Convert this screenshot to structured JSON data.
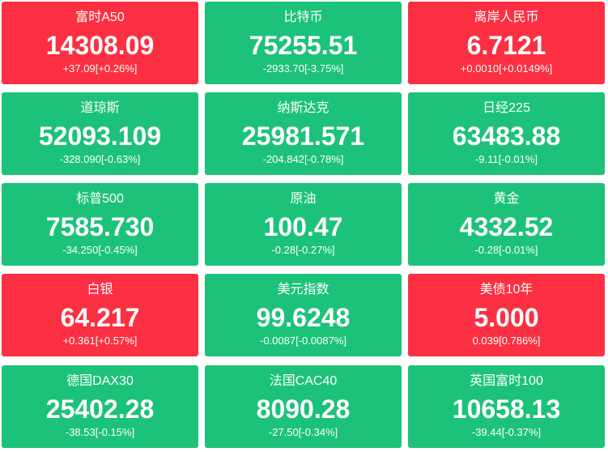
{
  "tiles": [
    {
      "name": "富时A50",
      "price": "14308.09",
      "change": "+37.09[+0.26%]",
      "color": "#fd2f42"
    },
    {
      "name": "比特币",
      "price": "75255.51",
      "change": "-2933.70[-3.75%]",
      "color": "#1cc27a"
    },
    {
      "name": "离岸人民币",
      "price": "6.7121",
      "change": "+0.0010[+0.0149%]",
      "color": "#fd2f42"
    },
    {
      "name": "道琼斯",
      "price": "52093.109",
      "change": "-328.090[-0.63%]",
      "color": "#1cc27a"
    },
    {
      "name": "纳斯达克",
      "price": "25981.571",
      "change": "-204.842[-0.78%]",
      "color": "#1cc27a"
    },
    {
      "name": "日经225",
      "price": "63483.88",
      "change": "-9.11[-0.01%]",
      "color": "#1cc27a"
    },
    {
      "name": "标普500",
      "price": "7585.730",
      "change": "-34.250[-0.45%]",
      "color": "#1cc27a"
    },
    {
      "name": "原油",
      "price": "100.47",
      "change": "-0.28[-0.27%]",
      "color": "#1cc27a"
    },
    {
      "name": "黄金",
      "price": "4332.52",
      "change": "-0.28[-0.01%]",
      "color": "#1cc27a"
    },
    {
      "name": "白银",
      "price": "64.217",
      "change": "+0.361[+0.57%]",
      "color": "#fd2f42"
    },
    {
      "name": "美元指数",
      "price": "99.6248",
      "change": "-0.0087[-0.0087%]",
      "color": "#1cc27a"
    },
    {
      "name": "美债10年",
      "price": "5.000",
      "change": "0.039[0.786%]",
      "color": "#fd2f42"
    },
    {
      "name": "德国DAX30",
      "price": "25402.28",
      "change": "-38.53[-0.15%]",
      "color": "#1cc27a"
    },
    {
      "name": "法国CAC40",
      "price": "8090.28",
      "change": "-27.50[-0.34%]",
      "color": "#1cc27a"
    },
    {
      "name": "英国富时100",
      "price": "10658.13",
      "change": "-39.44[-0.37%]",
      "color": "#1cc27a"
    }
  ]
}
